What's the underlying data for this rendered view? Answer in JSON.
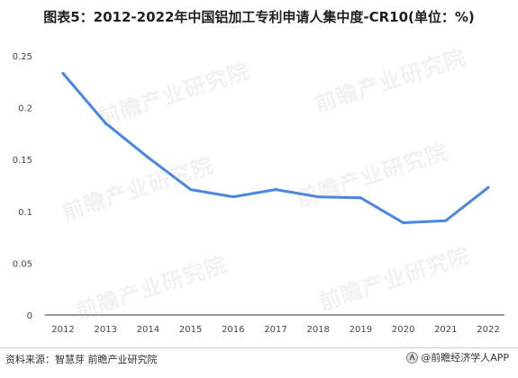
{
  "title": "图表5：2012-2022年中国铝加工专利申请人集中度-CR10(单位：%)",
  "source": "资料来源：智慧芽 前瞻产业研究院",
  "brand": "@前瞻经济学人APP",
  "watermark": "前瞻产业研究院",
  "colors": {
    "line": "#4a86e0",
    "axis": "#333333",
    "text": "#444444"
  },
  "chart_data": {
    "type": "line",
    "title": "图表5：2012-2022年中国铝加工专利申请人集中度-CR10(单位：%)",
    "xlabel": "",
    "ylabel": "",
    "categories": [
      "2012",
      "2013",
      "2014",
      "2015",
      "2016",
      "2017",
      "2018",
      "2019",
      "2020",
      "2021",
      "2022"
    ],
    "values": [
      0.233,
      0.185,
      0.152,
      0.121,
      0.114,
      0.121,
      0.114,
      0.113,
      0.089,
      0.091,
      0.123
    ],
    "ylim": [
      0,
      0.25
    ],
    "yticks": [
      "0",
      "0.05",
      "0.1",
      "0.15",
      "0.2",
      "0.25"
    ],
    "grid": false,
    "legend": "none"
  }
}
